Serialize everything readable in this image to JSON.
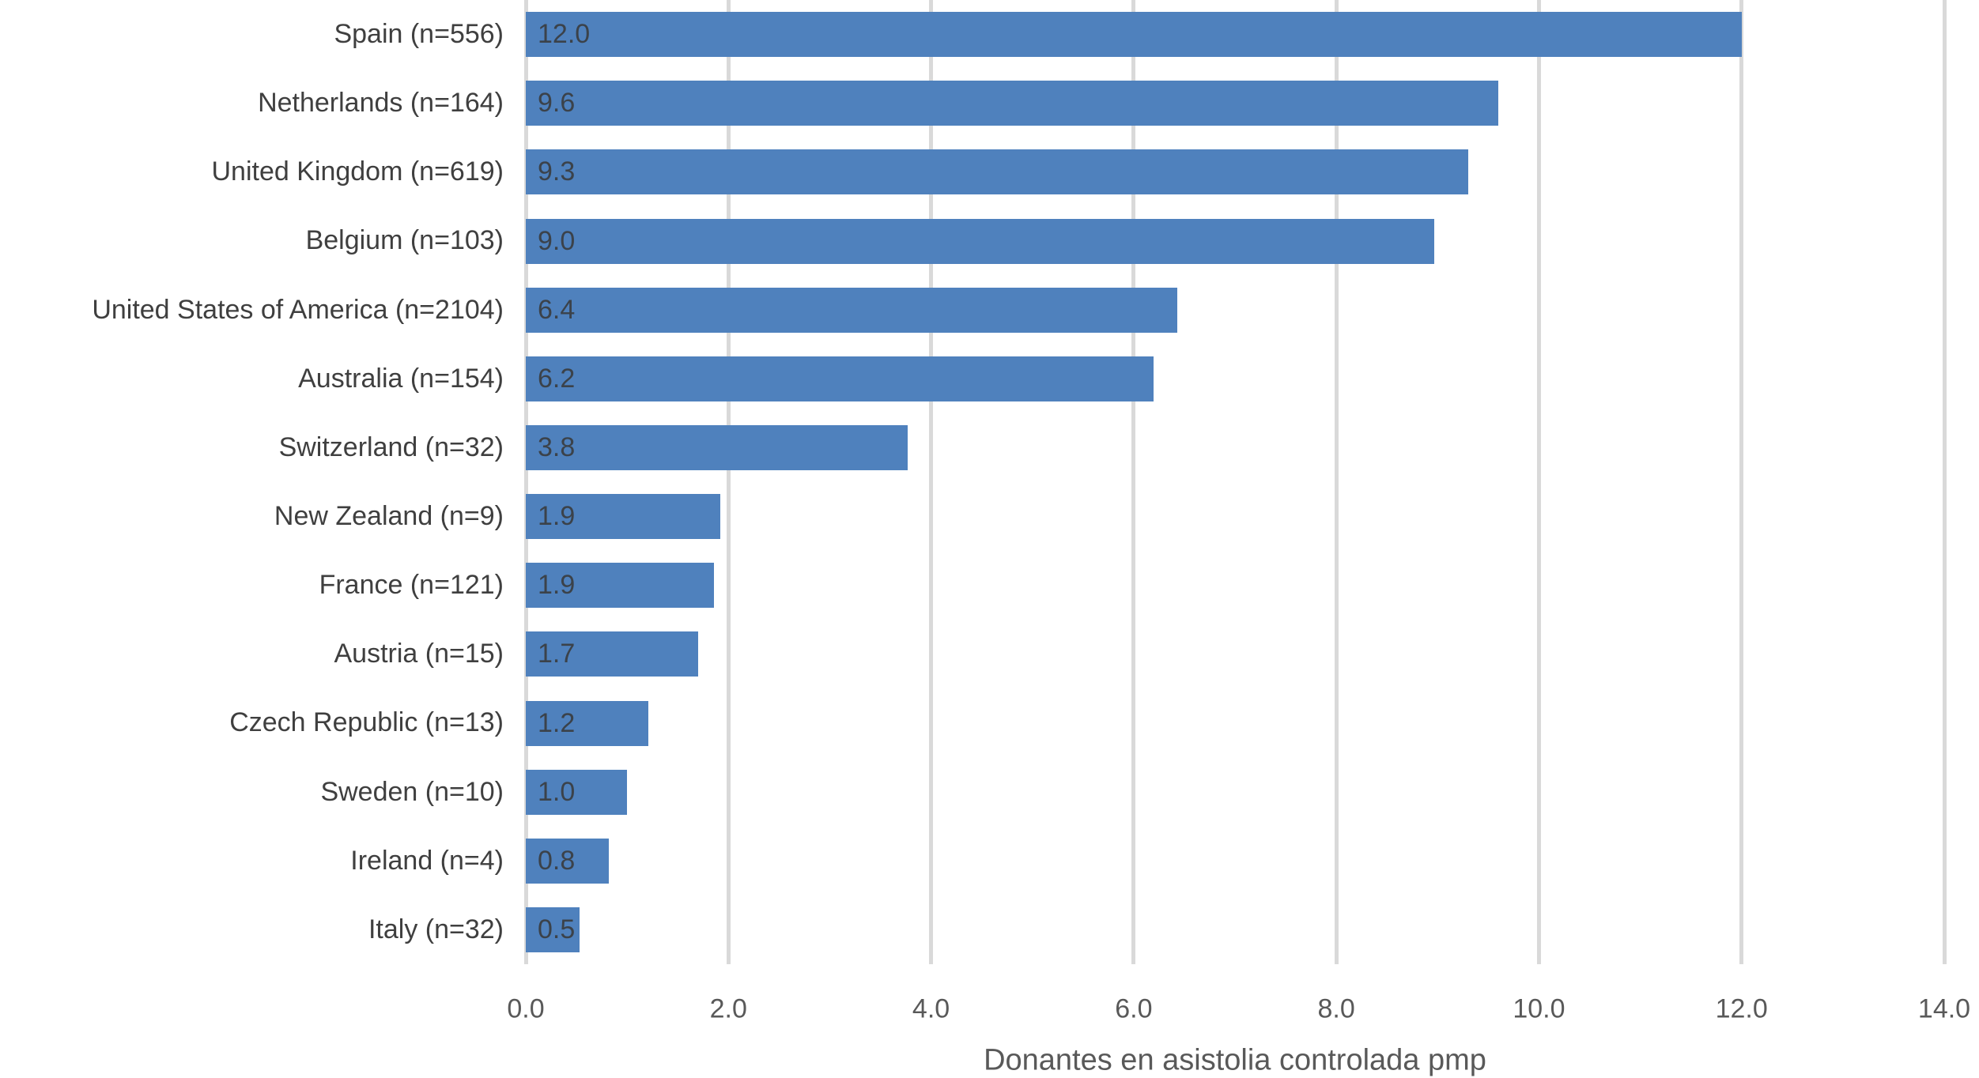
{
  "chart_data": {
    "type": "bar",
    "orientation": "horizontal",
    "title": "",
    "xlabel": "Donantes en asistolia controlada pmp",
    "ylabel": "",
    "xlim": [
      0,
      14
    ],
    "xtick_labels": [
      "0.0",
      "2.0",
      "4.0",
      "6.0",
      "8.0",
      "10.0",
      "12.0",
      "14.0"
    ],
    "grid": "vertical gridlines at every x tick",
    "legend": "none",
    "bars": [
      {
        "category": "Spain (n=556)",
        "value": 12.0,
        "value_label": "12.0",
        "bar_length": 12.0
      },
      {
        "category": "Netherlands (n=164)",
        "value": 9.6,
        "value_label": "9.6",
        "bar_length": 9.6
      },
      {
        "category": "United Kingdom (n=619)",
        "value": 9.3,
        "value_label": "9.3",
        "bar_length": 9.3
      },
      {
        "category": "Belgium (n=103)",
        "value": 9.0,
        "value_label": "9.0",
        "bar_length": 8.97
      },
      {
        "category": "United States of America (n=2104)",
        "value": 6.4,
        "value_label": "6.4",
        "bar_length": 6.43
      },
      {
        "category": "Australia (n=154)",
        "value": 6.2,
        "value_label": "6.2",
        "bar_length": 6.2
      },
      {
        "category": "Switzerland (n=32)",
        "value": 3.8,
        "value_label": "3.8",
        "bar_length": 3.77
      },
      {
        "category": "New Zealand (n=9)",
        "value": 1.9,
        "value_label": "1.9",
        "bar_length": 1.92
      },
      {
        "category": "France (n=121)",
        "value": 1.9,
        "value_label": "1.9",
        "bar_length": 1.86
      },
      {
        "category": "Austria (n=15)",
        "value": 1.7,
        "value_label": "1.7",
        "bar_length": 1.7
      },
      {
        "category": "Czech Republic (n=13)",
        "value": 1.2,
        "value_label": "1.2",
        "bar_length": 1.21
      },
      {
        "category": "Sweden (n=10)",
        "value": 1.0,
        "value_label": "1.0",
        "bar_length": 1.0
      },
      {
        "category": "Ireland (n=4)",
        "value": 0.8,
        "value_label": "0.8",
        "bar_length": 0.82
      },
      {
        "category": "Italy (n=32)",
        "value": 0.5,
        "value_label": "0.5",
        "bar_length": 0.53
      }
    ],
    "colors": {
      "bar": "#4F81BD",
      "gridline": "#D9D9D9",
      "category_label": "#3F3F3F",
      "value_label": "#3B424A",
      "tick_label": "#595959",
      "axis_label": "#595959"
    }
  }
}
